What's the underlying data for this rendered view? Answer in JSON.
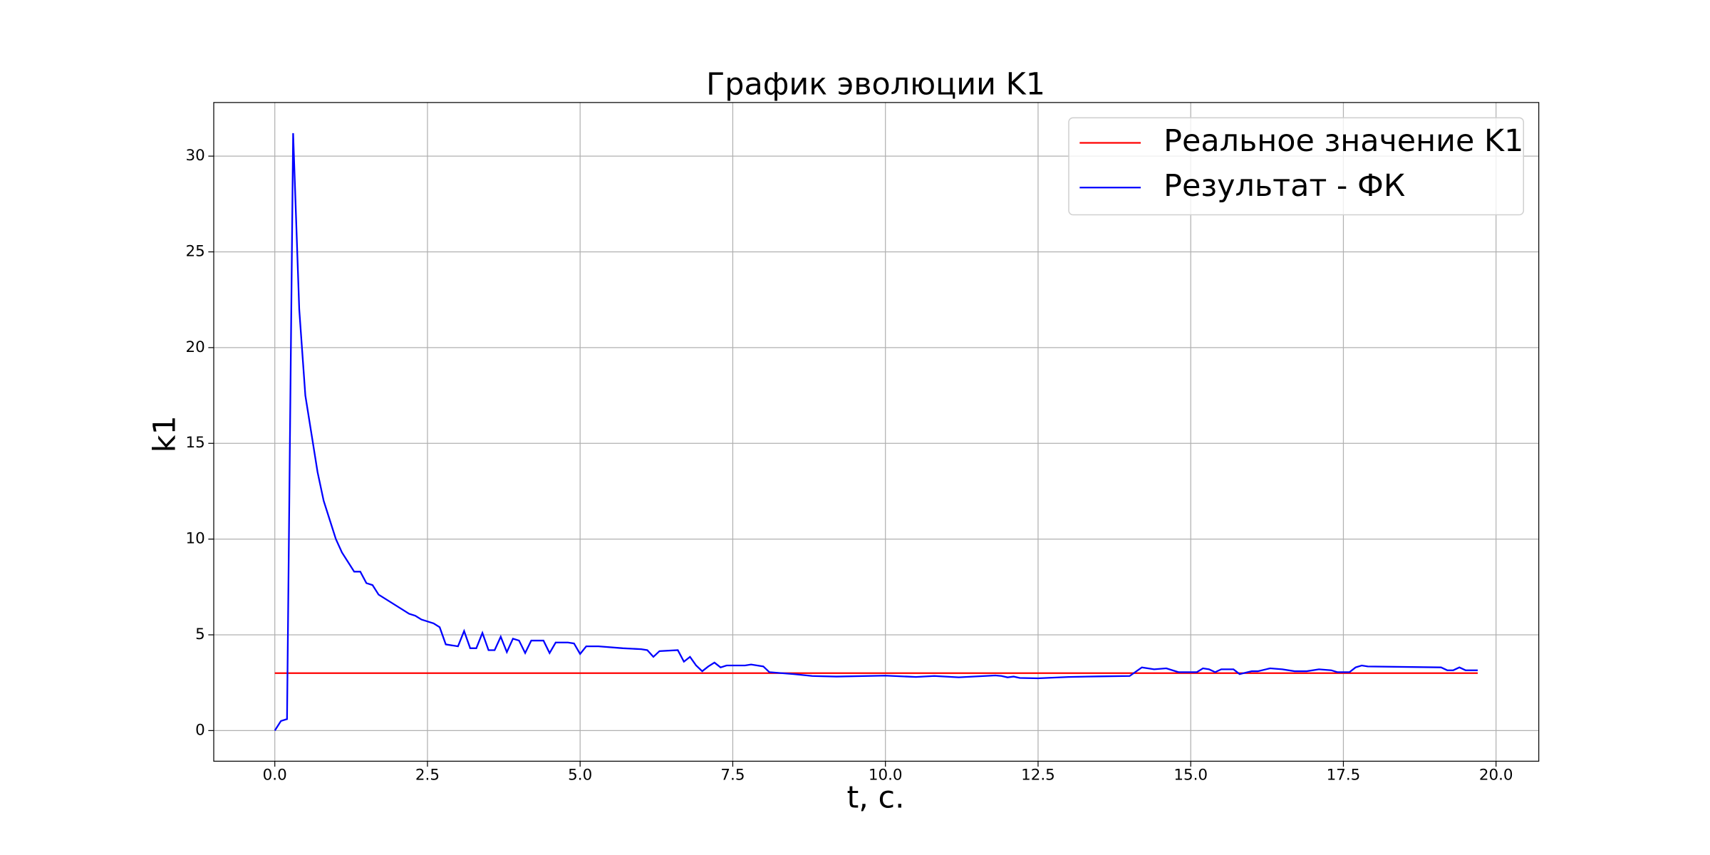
{
  "chart_data": {
    "type": "line",
    "title": "График эволюции K1",
    "xlabel": "t, c.",
    "ylabel": "k1",
    "xlim": [
      -1.0,
      20.7
    ],
    "ylim": [
      -1.6,
      32.8
    ],
    "xticks": [
      {
        "value": 0,
        "label": "0.0"
      },
      2.5,
      {
        "value": 5,
        "label": "5.0"
      },
      7.5,
      {
        "value": 10,
        "label": "10.0"
      },
      12.5,
      {
        "value": 15,
        "label": "15.0"
      },
      17.5,
      {
        "value": 20,
        "label": "20.0"
      }
    ],
    "yticks": [
      0,
      5,
      10,
      15,
      20,
      25,
      30
    ],
    "grid": true,
    "legend": "upper right",
    "series": [
      {
        "name": "Реальное значение K1",
        "color": "#ff0000",
        "x": [
          0,
          19.7
        ],
        "values": [
          3,
          3
        ]
      },
      {
        "name": "Результат - ФК",
        "color": "#0000ff",
        "x": [
          0,
          0.1,
          0.2,
          0.3,
          0.4,
          0.5,
          0.6,
          0.7,
          0.8,
          0.9,
          1.0,
          1.1,
          1.2,
          1.3,
          1.4,
          1.5,
          1.6,
          1.7,
          1.8,
          1.9,
          2.0,
          2.1,
          2.2,
          2.3,
          2.4,
          2.5,
          2.6,
          2.7,
          2.8,
          3.0,
          3.1,
          3.2,
          3.3,
          3.4,
          3.5,
          3.6,
          3.7,
          3.8,
          3.9,
          4.0,
          4.1,
          4.2,
          4.4,
          4.5,
          4.6,
          4.8,
          4.9,
          5.0,
          5.1,
          5.3,
          5.7,
          6.0,
          6.1,
          6.2,
          6.3,
          6.6,
          6.7,
          6.8,
          6.9,
          7.0,
          7.1,
          7.2,
          7.3,
          7.4,
          7.7,
          7.8,
          7.9,
          8.0,
          8.1,
          8.5,
          8.8,
          9.2,
          10.0,
          10.5,
          10.8,
          11.2,
          11.8,
          11.9,
          12.0,
          12.1,
          12.2,
          12.5,
          13.0,
          13.5,
          14.0,
          14.2,
          14.4,
          14.6,
          14.8,
          15.1,
          15.2,
          15.3,
          15.4,
          15.5,
          15.7,
          15.8,
          16.0,
          16.1,
          16.3,
          16.5,
          16.7,
          16.9,
          17.1,
          17.3,
          17.4,
          17.6,
          17.7,
          17.8,
          17.9,
          19.1,
          19.2,
          19.3,
          19.4,
          19.5,
          19.7
        ],
        "values": [
          0,
          0.5,
          0.6,
          31.2,
          22,
          17.5,
          15.5,
          13.5,
          12,
          11,
          10,
          9.3,
          8.8,
          8.3,
          8.3,
          7.7,
          7.6,
          7.1,
          6.9,
          6.7,
          6.5,
          6.3,
          6.1,
          6.0,
          5.8,
          5.7,
          5.6,
          5.4,
          4.5,
          4.4,
          5.2,
          4.3,
          4.3,
          5.1,
          4.2,
          4.2,
          4.9,
          4.1,
          4.8,
          4.7,
          4.05,
          4.7,
          4.7,
          4.05,
          4.6,
          4.6,
          4.55,
          4.0,
          4.4,
          4.4,
          4.3,
          4.25,
          4.2,
          3.85,
          4.15,
          4.2,
          3.6,
          3.85,
          3.4,
          3.1,
          3.35,
          3.55,
          3.3,
          3.4,
          3.4,
          3.45,
          3.4,
          3.35,
          3.05,
          2.95,
          2.85,
          2.82,
          2.87,
          2.8,
          2.85,
          2.78,
          2.88,
          2.85,
          2.78,
          2.82,
          2.75,
          2.73,
          2.8,
          2.83,
          2.85,
          3.3,
          3.2,
          3.25,
          3.05,
          3.05,
          3.25,
          3.2,
          3.05,
          3.2,
          3.2,
          2.95,
          3.1,
          3.1,
          3.25,
          3.2,
          3.1,
          3.1,
          3.2,
          3.15,
          3.05,
          3.05,
          3.3,
          3.4,
          3.35,
          3.3,
          3.15,
          3.15,
          3.3,
          3.15,
          3.15
        ]
      }
    ]
  }
}
